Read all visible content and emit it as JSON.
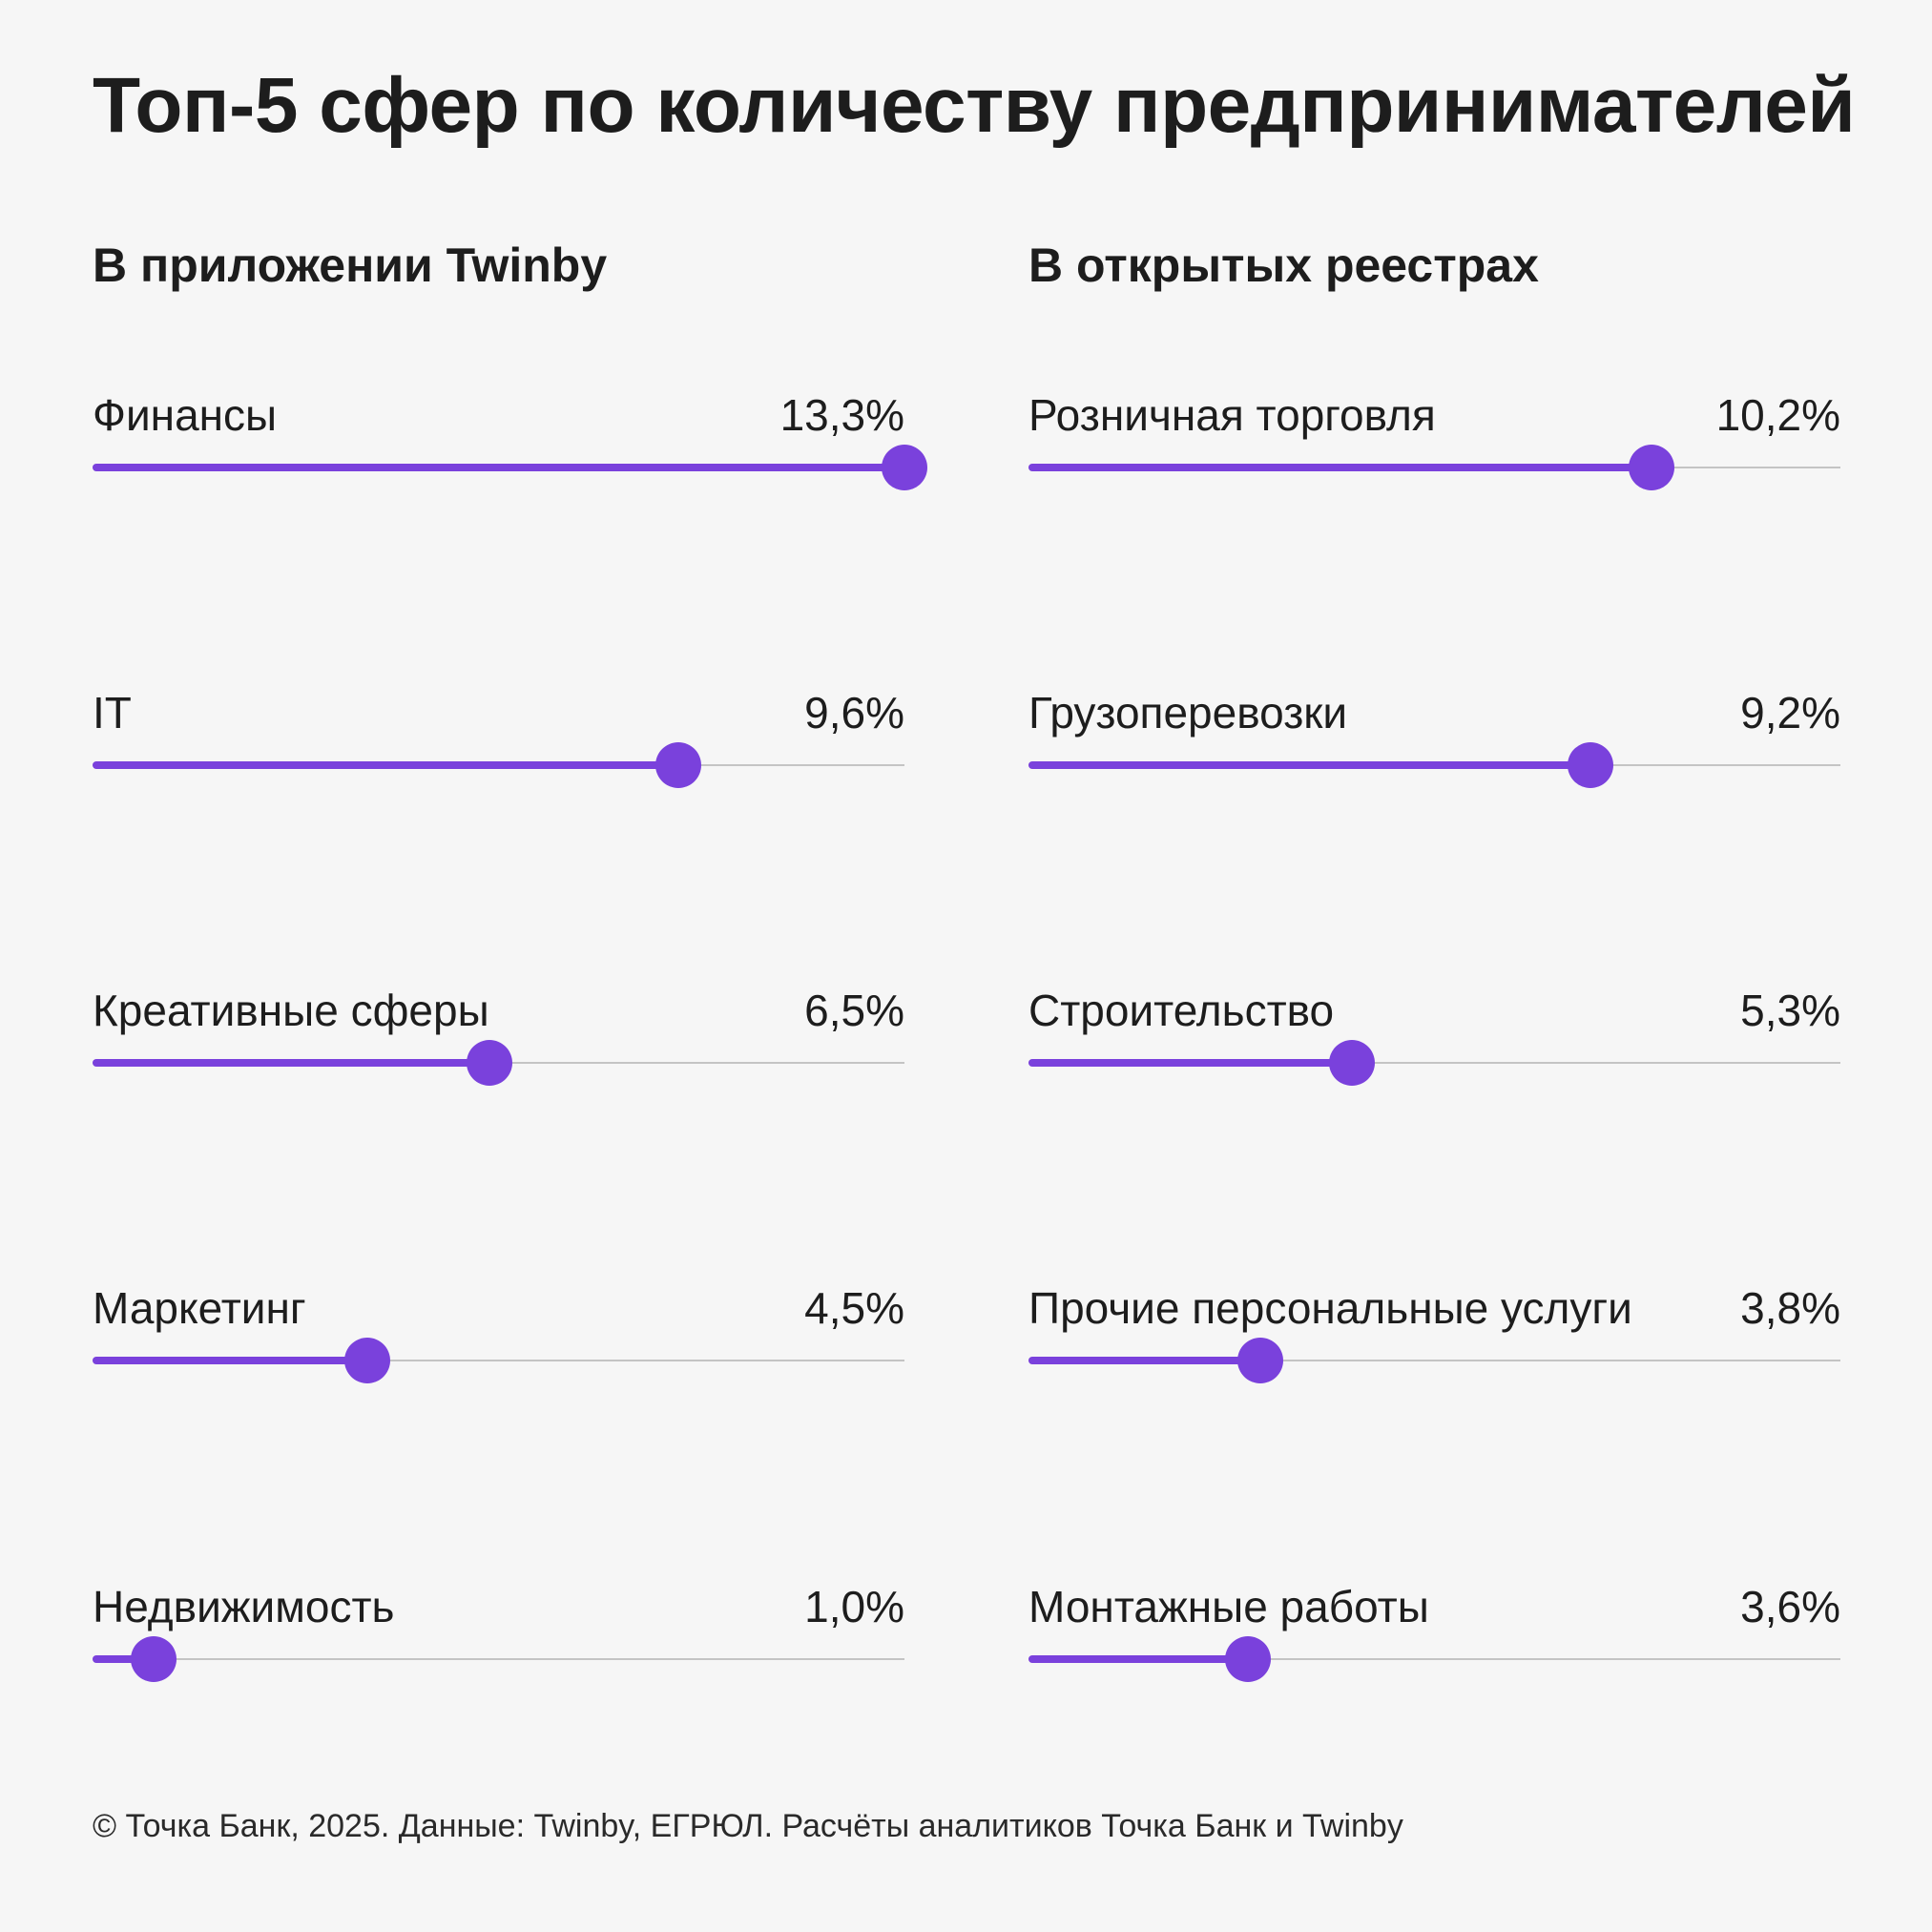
{
  "title": "Топ-5 сфер по количеству предпринимателей",
  "colors": {
    "accent": "#7a41dc",
    "track": "#c4c4c4",
    "background": "#f6f6f6"
  },
  "chart_data": [
    {
      "type": "bar",
      "title": "В приложении Twinby",
      "scale_max": 13.3,
      "categories": [
        "Финансы",
        "IT",
        "Креативные сферы",
        "Маркетинг",
        "Недвижимость"
      ],
      "values": [
        13.3,
        9.6,
        6.5,
        4.5,
        1.0
      ],
      "value_labels": [
        "13,3%",
        "9,6%",
        "6,5%",
        "4,5%",
        "1,0%"
      ]
    },
    {
      "type": "bar",
      "title": "В открытых реестрах",
      "scale_max": 13.3,
      "categories": [
        "Розничная торговля",
        "Грузоперевозки",
        "Строительство",
        "Прочие персональные услуги",
        "Монтажные работы"
      ],
      "values": [
        10.2,
        9.2,
        5.3,
        3.8,
        3.6
      ],
      "value_labels": [
        "10,2%",
        "9,2%",
        "5,3%",
        "3,8%",
        "3,6%"
      ]
    }
  ],
  "footer": "© Точка Банк, 2025. Данные: Twinby, ЕГРЮЛ. Расчёты аналитиков Точка Банк и Twinby"
}
